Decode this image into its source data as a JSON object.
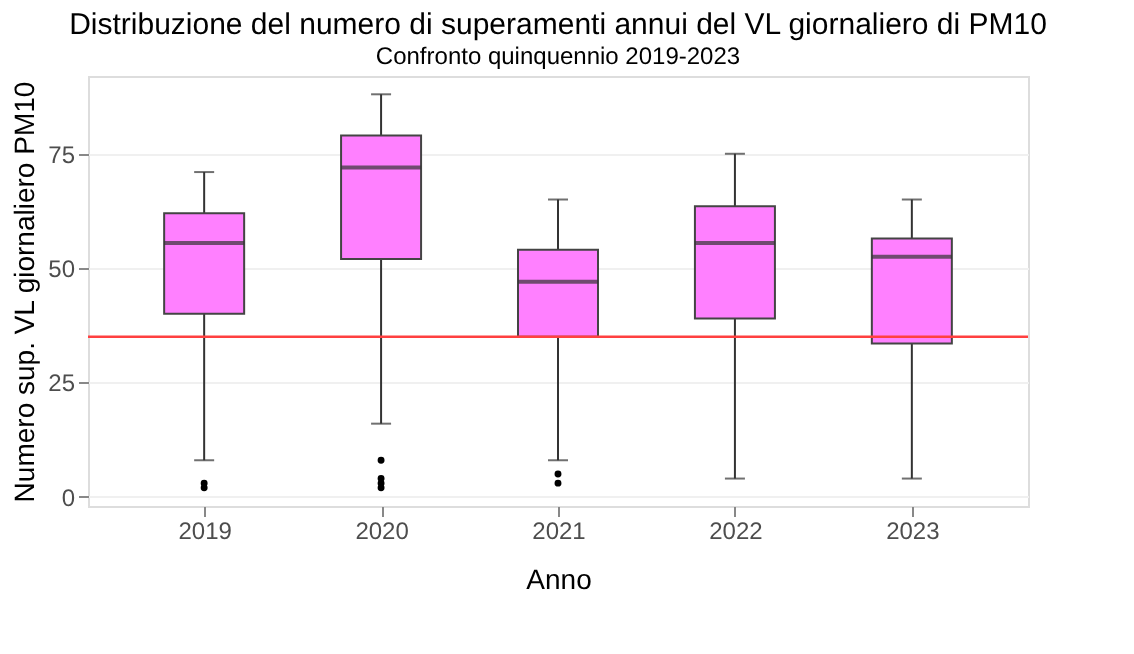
{
  "chart_data": {
    "type": "box",
    "title": "Distribuzione del numero di superamenti annui del VL giornaliero di PM10",
    "subtitle": "Confronto quinquennio 2019-2023",
    "xlabel": "Anno",
    "ylabel": "Numero sup. VL giornaliero PM10",
    "categories": [
      "2019",
      "2020",
      "2021",
      "2022",
      "2023"
    ],
    "boxes": [
      {
        "low": 8,
        "q1": 40,
        "median": 55.5,
        "q3": 62,
        "high": 71,
        "outliers": [
          3,
          2
        ]
      },
      {
        "low": 16,
        "q1": 52,
        "median": 72,
        "q3": 79,
        "high": 88,
        "outliers": [
          8,
          4,
          3,
          2
        ]
      },
      {
        "low": 8,
        "q1": 35,
        "median": 47,
        "q3": 54,
        "high": 65,
        "outliers": [
          5,
          3
        ]
      },
      {
        "low": 4,
        "q1": 39,
        "median": 55.5,
        "q3": 63.5,
        "high": 75
      },
      {
        "low": 4,
        "q1": 33.5,
        "median": 52.5,
        "q3": 56.5,
        "high": 65
      }
    ],
    "color": "#ff80ff",
    "ylim": [
      -2,
      92
    ],
    "yticks": [
      0,
      25,
      50,
      75
    ],
    "grid": "y",
    "ref_lines": [
      {
        "axis": "y",
        "value": 35,
        "color": "#ff4040"
      }
    ]
  }
}
